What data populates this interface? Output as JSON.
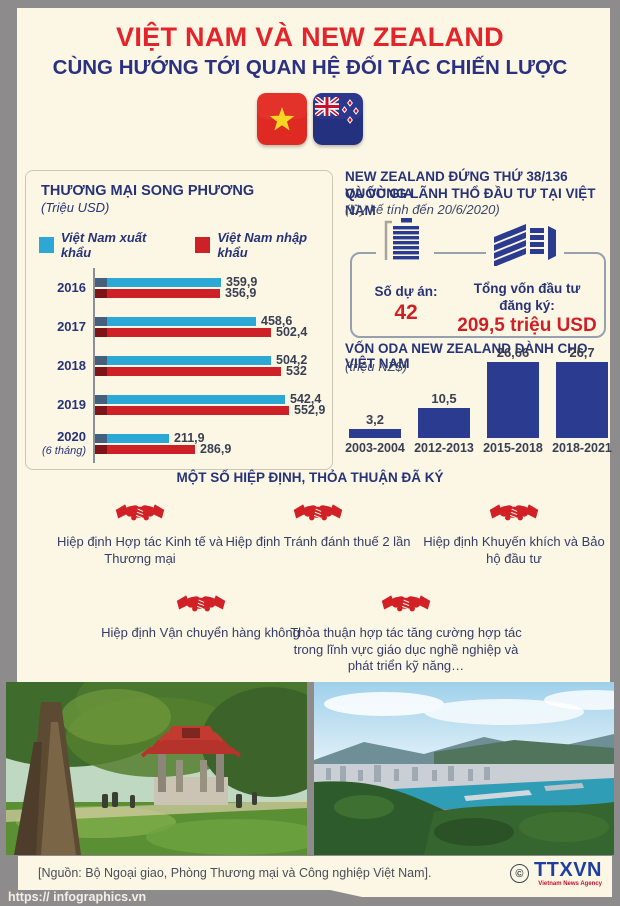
{
  "header": {
    "title": "VIỆT NAM VÀ NEW ZEALAND",
    "subtitle": "CÙNG HƯỚNG TỚI QUAN HỆ ĐỐI TÁC CHIẾN LƯỢC",
    "title_color": "#E4242B",
    "subtitle_color": "#2A3180",
    "flags": [
      "vietnam-flag",
      "new-zealand-flag"
    ]
  },
  "investment": {
    "title_line1": "NEW ZEALAND ĐỨNG THỨ 38/136 QUỐC GIA",
    "title_line2": "VÀ VÙNG LÃNH THỔ ĐẦU TƯ TẠI VIỆT NAM",
    "note": "(lũy kế tính đến 20/6/2020)",
    "projects_label": "Số dự án:",
    "projects_value": "42",
    "capital_label_line1": "Tổng vốn đầu tư",
    "capital_label_line2": "đăng ký:",
    "capital_value": "209,5 triệu USD",
    "icons": [
      "projects-document-icon",
      "capital-money-icon"
    ],
    "value_color": "#CE2127"
  },
  "agreements": {
    "title": "MỘT SỐ HIỆP ĐỊNH, THỎA THUẬN ĐÃ KÝ",
    "icon": "handshake-icon",
    "icon_color": "#D22027",
    "items": [
      "Hiệp định Hợp tác Kinh tế và Thương mại",
      "Hiệp định Tránh đánh thuế 2 lần",
      "Hiệp định Khuyến khích và Bảo hộ đầu tư",
      "Hiệp định Vận chuyển hàng không",
      "Thỏa thuận hợp tác tăng cường hợp tác trong lĩnh vực giáo dục nghề nghiệp và phát triển kỹ năng…"
    ]
  },
  "photos": [
    "van-mieu-temple-photo",
    "wellington-harbour-photo"
  ],
  "footer": {
    "source": "[Nguồn: Bộ Ngoại giao, Phòng Thương mại và Công nghiệp Việt Nam].",
    "copyright": "©",
    "agency": "TTXVN",
    "agency_sub": "Vietnam News Agency",
    "url": "https:// infographics.vn"
  },
  "chart_data": [
    {
      "type": "bar",
      "orientation": "horizontal",
      "title": "THƯƠNG MẠI SONG PHƯƠNG",
      "unit": "(Triệu USD)",
      "categories": [
        "2016",
        "2017",
        "2018",
        "2019",
        "2020"
      ],
      "category_notes": [
        "",
        "",
        "",
        "",
        "(6 tháng)"
      ],
      "series": [
        {
          "name": "Việt Nam xuất khẩu",
          "color": "#2CA8D4",
          "dark": "#44607C",
          "values": [
            359.9,
            458.6,
            504.2,
            542.4,
            211.9
          ],
          "labels": [
            "359,9",
            "458,6",
            "504,2",
            "542,4",
            "211,9"
          ]
        },
        {
          "name": "Việt Nam nhập khẩu",
          "color": "#CE2127",
          "dark": "#7E1417",
          "values": [
            356.9,
            502.4,
            532,
            552.9,
            286.9
          ],
          "labels": [
            "356,9",
            "502,4",
            "532",
            "552,9",
            "286,9"
          ]
        }
      ],
      "xlim": [
        0,
        560
      ],
      "legend_position": "top",
      "grid": false
    },
    {
      "type": "bar",
      "orientation": "vertical",
      "title": "VỐN ODA NEW ZEALAND DÀNH CHO VIỆT NAM",
      "unit": "(triệu NZ$)",
      "categories": [
        "2003-2004",
        "2012-2013",
        "2015-2018",
        "2018-2021"
      ],
      "values": [
        3.2,
        10.5,
        26.66,
        26.7
      ],
      "labels": [
        "3,2",
        "10,5",
        "26,66",
        "26,7"
      ],
      "bar_color": "#2B3B8F",
      "ylim": [
        0,
        28
      ],
      "grid": false
    }
  ]
}
